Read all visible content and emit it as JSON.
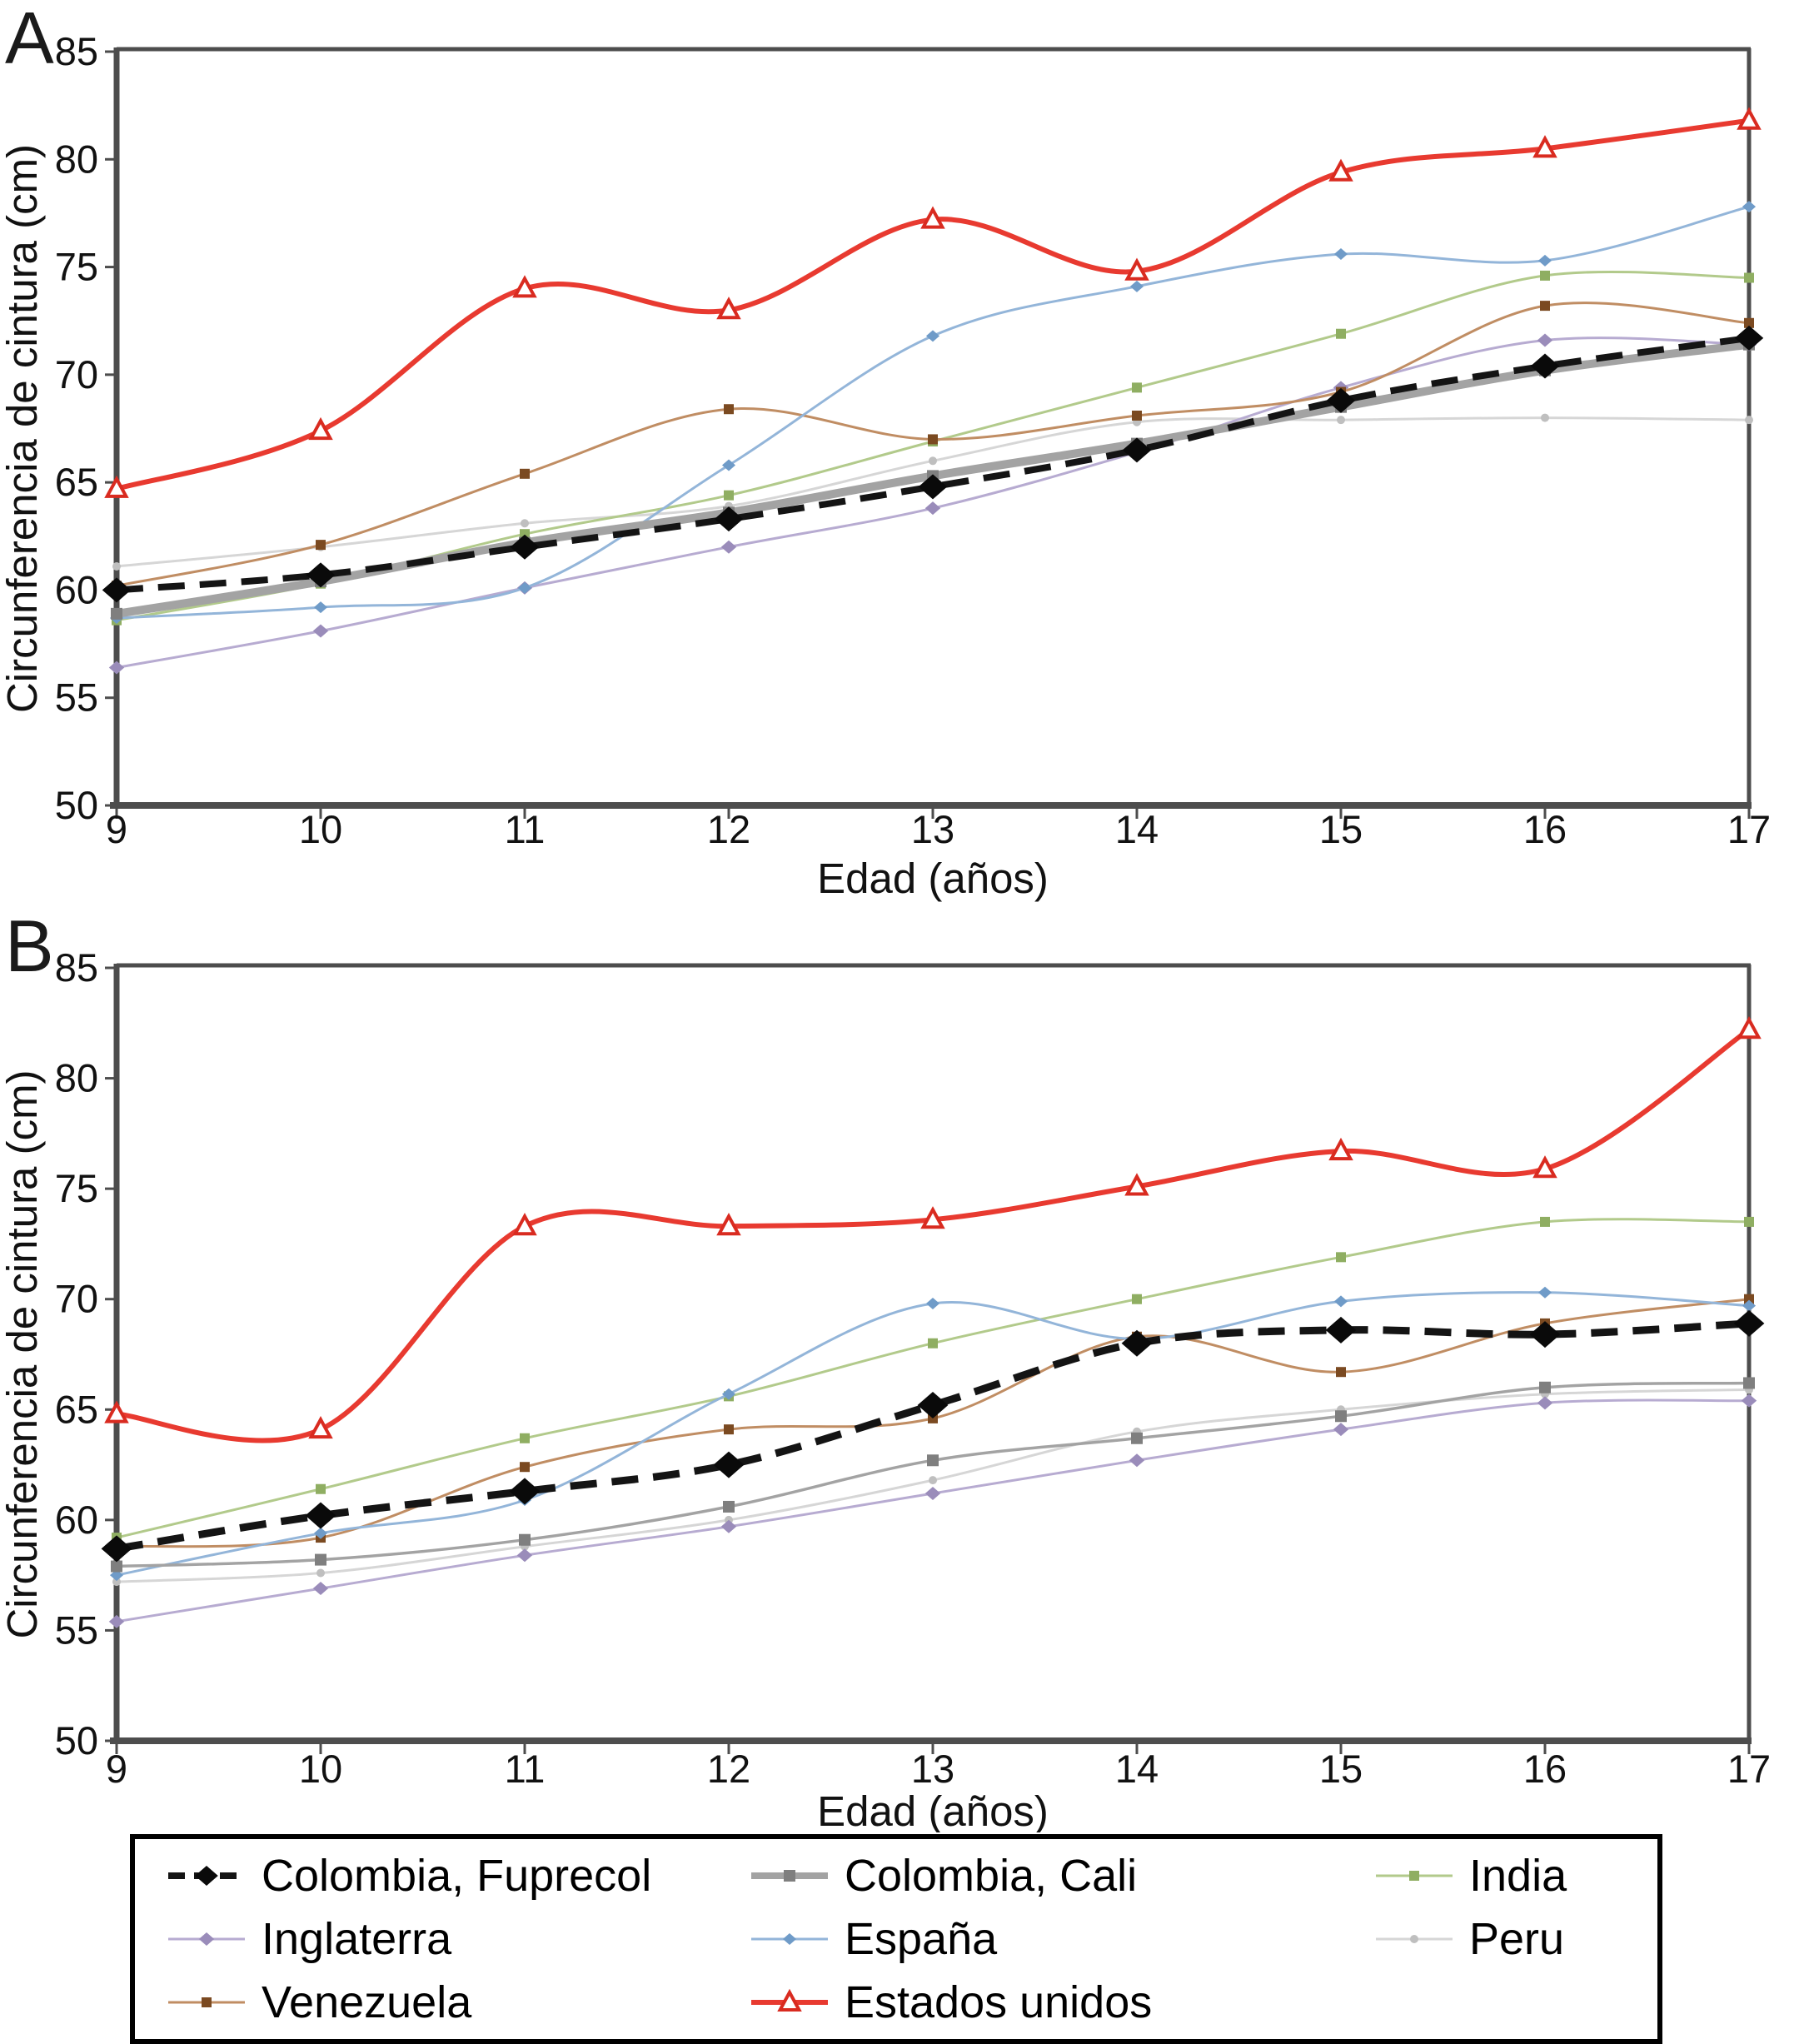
{
  "figure": {
    "panel_a_letter": "A",
    "panel_b_letter": "B"
  },
  "chart_data": [
    {
      "type": "line",
      "panel_label": "A",
      "xlabel": "Edad (años)",
      "ylabel": "Circunferencia de cintura (cm)",
      "x": [
        9,
        10,
        11,
        12,
        13,
        14,
        15,
        16,
        17
      ],
      "yticks": [
        85,
        80,
        75,
        70,
        65,
        60,
        55,
        50
      ],
      "ylim": [
        50,
        85
      ],
      "xlim": [
        9,
        17
      ],
      "grid": false,
      "series": [
        {
          "key": "peru",
          "name": "Peru",
          "color": "#d6d6d6",
          "line_width": 3,
          "dash": null,
          "marker": {
            "type": "dot",
            "size": 5,
            "color": "#bfbfbf"
          },
          "values": [
            61.1,
            62.0,
            63.1,
            63.9,
            66.0,
            67.8,
            67.9,
            68.0,
            67.9
          ]
        },
        {
          "key": "inglaterra",
          "name": "Inglaterra",
          "color": "#b7abd1",
          "line_width": 3,
          "dash": null,
          "marker": {
            "type": "diamond",
            "size": 8,
            "color": "#9a8cba"
          },
          "values": [
            56.4,
            58.1,
            60.1,
            62.0,
            63.8,
            66.4,
            69.4,
            71.6,
            71.4
          ]
        },
        {
          "key": "india",
          "name": "India",
          "color": "#b2ca8b",
          "line_width": 3,
          "dash": null,
          "marker": {
            "type": "square",
            "size": 6,
            "color": "#8fae62"
          },
          "values": [
            58.6,
            60.3,
            62.6,
            64.4,
            66.9,
            69.4,
            71.9,
            74.6,
            74.5
          ]
        },
        {
          "key": "venezuela",
          "name": "Venezuela",
          "color": "#c08d63",
          "line_width": 3,
          "dash": null,
          "marker": {
            "type": "square",
            "size": 6,
            "color": "#7b4a21"
          },
          "values": [
            60.2,
            62.1,
            65.4,
            68.4,
            67.0,
            68.1,
            69.2,
            73.2,
            72.4
          ]
        },
        {
          "key": "espana",
          "name": "España",
          "color": "#93b5d9",
          "line_width": 3,
          "dash": null,
          "marker": {
            "type": "diamond",
            "size": 7,
            "color": "#6f9bc8"
          },
          "values": [
            58.7,
            59.2,
            60.1,
            65.8,
            71.8,
            74.1,
            75.6,
            75.3,
            77.8
          ]
        },
        {
          "key": "colombia_cali",
          "name": "Colombia, Cali",
          "color": "#a3a3a3",
          "line_width": 10,
          "dash": null,
          "marker": {
            "type": "square",
            "size": 7,
            "color": "#7f7f7f"
          },
          "values": [
            58.9,
            60.4,
            62.2,
            63.6,
            65.3,
            66.8,
            68.5,
            70.2,
            71.4
          ]
        },
        {
          "key": "colombia_fuprecol",
          "name": "Colombia, Fuprecol",
          "color": "#141414",
          "line_width": 8,
          "dash": "32 18",
          "marker": {
            "type": "diamond",
            "size": 15,
            "color": "#0a0a0a"
          },
          "values": [
            60.0,
            60.7,
            62.0,
            63.3,
            64.8,
            66.5,
            68.8,
            70.4,
            71.7
          ]
        },
        {
          "key": "estados_unidos",
          "name": "Estados unidos",
          "color": "#e83a30",
          "line_width": 6,
          "dash": null,
          "marker": {
            "type": "triangle-open",
            "size": 12,
            "color": "#d92b20"
          },
          "values": [
            64.7,
            67.4,
            74.0,
            73.0,
            77.2,
            74.8,
            79.4,
            80.5,
            81.8
          ]
        }
      ]
    },
    {
      "type": "line",
      "panel_label": "B",
      "xlabel": "Edad (años)",
      "ylabel": "Circunferencia de cintura (cm)",
      "x": [
        9,
        10,
        11,
        12,
        13,
        14,
        15,
        16,
        17
      ],
      "yticks": [
        85,
        80,
        75,
        70,
        65,
        60,
        55,
        50
      ],
      "ylim": [
        50,
        85
      ],
      "xlim": [
        9,
        17
      ],
      "grid": false,
      "series": [
        {
          "key": "peru",
          "name": "Peru",
          "color": "#d6d6d6",
          "line_width": 3,
          "dash": null,
          "marker": {
            "type": "dot",
            "size": 5,
            "color": "#bfbfbf"
          },
          "values": [
            57.2,
            57.6,
            58.8,
            60.0,
            61.8,
            64.0,
            65.0,
            65.7,
            65.9
          ]
        },
        {
          "key": "inglaterra",
          "name": "Inglaterra",
          "color": "#b7abd1",
          "line_width": 3,
          "dash": null,
          "marker": {
            "type": "diamond",
            "size": 8,
            "color": "#9a8cba"
          },
          "values": [
            55.4,
            56.9,
            58.4,
            59.7,
            61.2,
            62.7,
            64.1,
            65.3,
            65.4
          ]
        },
        {
          "key": "india",
          "name": "India",
          "color": "#b2ca8b",
          "line_width": 3,
          "dash": null,
          "marker": {
            "type": "square",
            "size": 6,
            "color": "#8fae62"
          },
          "values": [
            59.2,
            61.4,
            63.7,
            65.6,
            68.0,
            70.0,
            71.9,
            73.5,
            73.5
          ]
        },
        {
          "key": "venezuela",
          "name": "Venezuela",
          "color": "#c08d63",
          "line_width": 3,
          "dash": null,
          "marker": {
            "type": "square",
            "size": 6,
            "color": "#7b4a21"
          },
          "values": [
            58.8,
            59.2,
            62.4,
            64.1,
            64.6,
            68.3,
            66.7,
            68.9,
            70.0
          ]
        },
        {
          "key": "espana",
          "name": "España",
          "color": "#93b5d9",
          "line_width": 3,
          "dash": null,
          "marker": {
            "type": "diamond",
            "size": 7,
            "color": "#6f9bc8"
          },
          "values": [
            57.5,
            59.4,
            60.9,
            65.7,
            69.8,
            68.2,
            69.9,
            70.3,
            69.7
          ]
        },
        {
          "key": "colombia_cali",
          "name": "Colombia, Cali",
          "color": "#a3a3a3",
          "line_width": 3.5,
          "dash": null,
          "marker": {
            "type": "square",
            "size": 7,
            "color": "#7f7f7f"
          },
          "values": [
            57.9,
            58.2,
            59.1,
            60.6,
            62.7,
            63.7,
            64.7,
            66.0,
            66.2
          ]
        },
        {
          "key": "colombia_fuprecol",
          "name": "Colombia, Fuprecol",
          "color": "#141414",
          "line_width": 9,
          "dash": "32 18",
          "marker": {
            "type": "diamond",
            "size": 16,
            "color": "#0a0a0a"
          },
          "values": [
            58.7,
            60.2,
            61.3,
            62.5,
            65.2,
            68.0,
            68.6,
            68.4,
            68.9
          ]
        },
        {
          "key": "estados_unidos",
          "name": "Estados unidos",
          "color": "#e83a30",
          "line_width": 6,
          "dash": null,
          "marker": {
            "type": "triangle-open",
            "size": 12,
            "color": "#d92b20"
          },
          "values": [
            64.8,
            64.1,
            73.3,
            73.3,
            73.6,
            75.1,
            76.7,
            75.9,
            82.2
          ]
        }
      ]
    }
  ],
  "legend": {
    "items": [
      {
        "key": "colombia_fuprecol",
        "label": "Colombia, Fuprecol"
      },
      {
        "key": "colombia_cali",
        "label": "Colombia, Cali"
      },
      {
        "key": "india",
        "label": "India"
      },
      {
        "key": "inglaterra",
        "label": "Inglaterra"
      },
      {
        "key": "espana",
        "label": "España"
      },
      {
        "key": "peru",
        "label": "Peru"
      },
      {
        "key": "venezuela",
        "label": "Venezuela"
      },
      {
        "key": "estados_unidos",
        "label": "Estados unidos"
      }
    ]
  }
}
